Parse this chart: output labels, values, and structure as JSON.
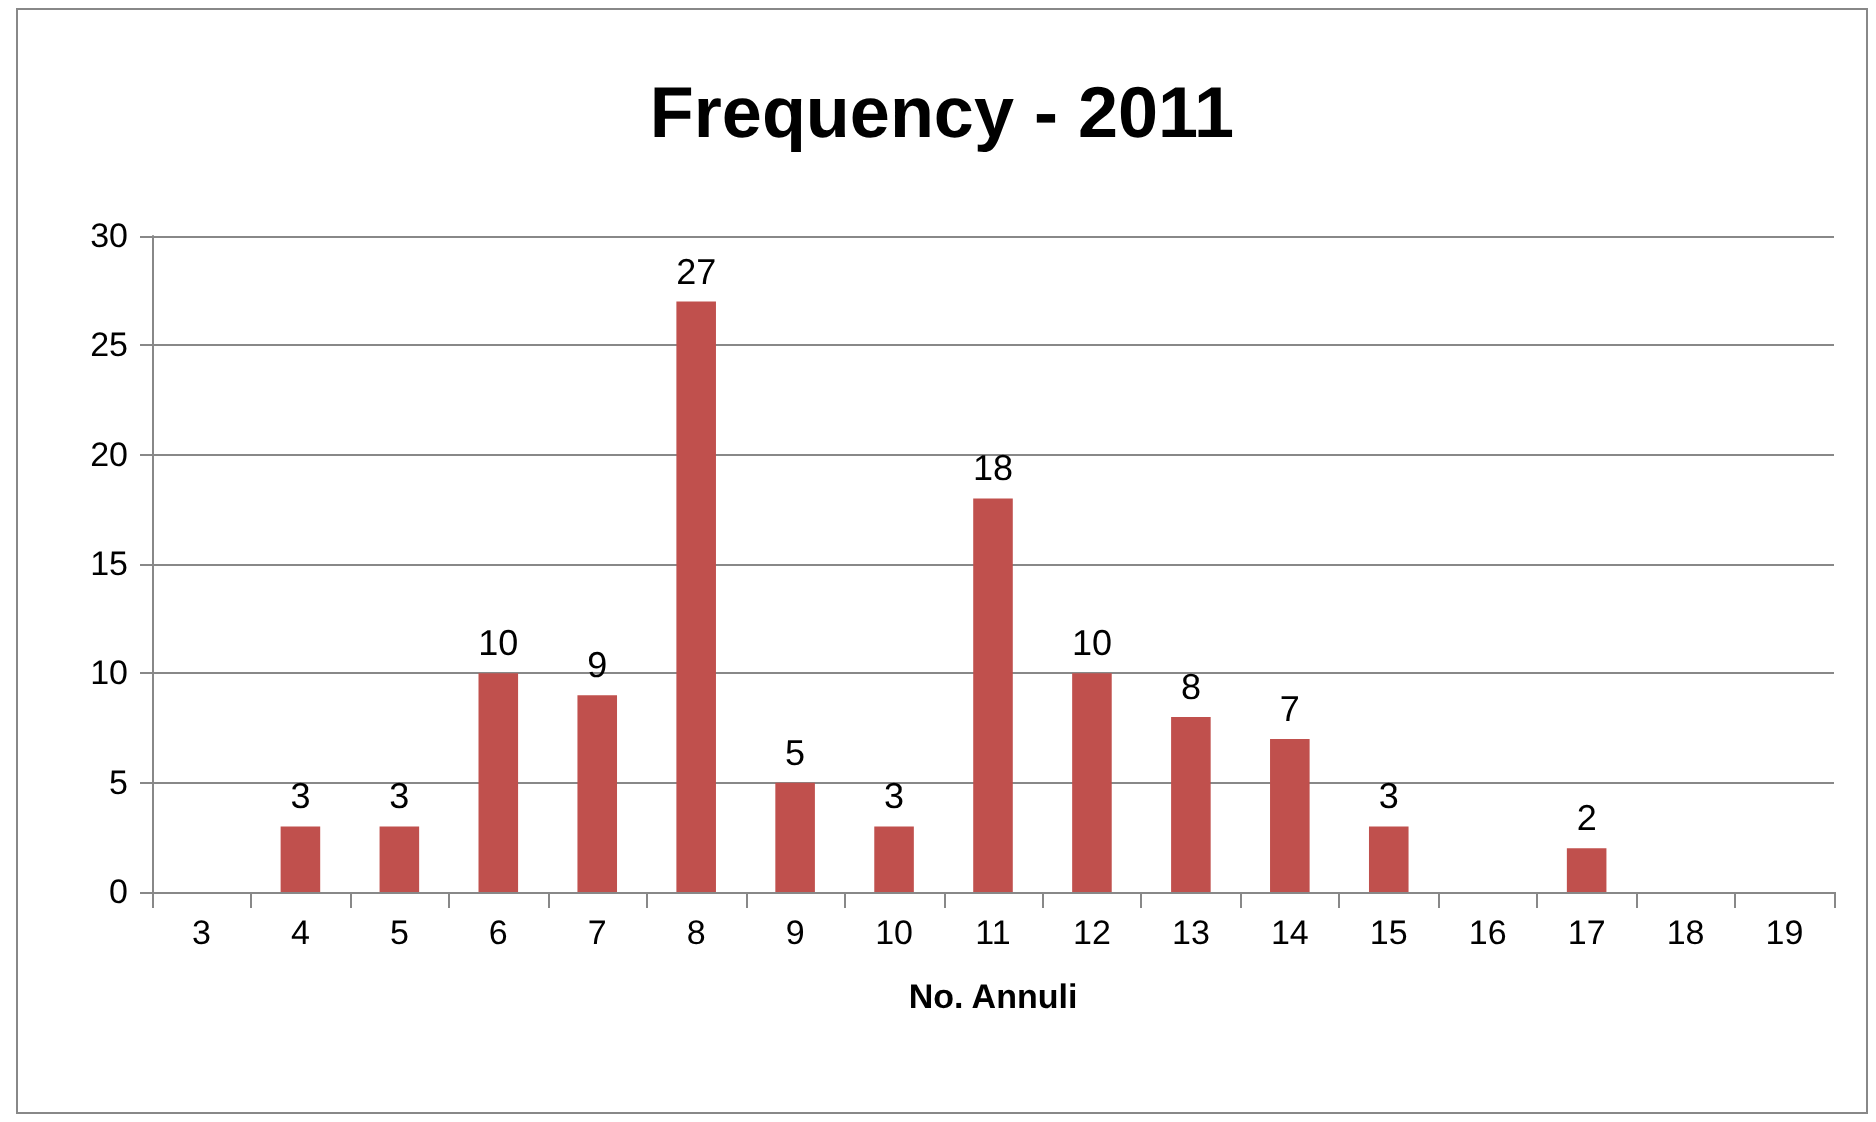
{
  "chart_data": {
    "type": "bar",
    "title": "Frequency - 2011",
    "xlabel": "No. Annuli",
    "categories": [
      "3",
      "4",
      "5",
      "6",
      "7",
      "8",
      "9",
      "10",
      "11",
      "12",
      "13",
      "14",
      "15",
      "16",
      "17",
      "18",
      "19"
    ],
    "values": [
      null,
      3,
      3,
      10,
      9,
      27,
      5,
      3,
      18,
      10,
      8,
      7,
      3,
      null,
      2,
      null,
      null
    ],
    "color": "#c0504d",
    "ylim": [
      0,
      30
    ],
    "yticks": [
      0,
      5,
      10,
      15,
      20,
      25,
      30
    ],
    "grid": "y",
    "data_labels": true
  }
}
